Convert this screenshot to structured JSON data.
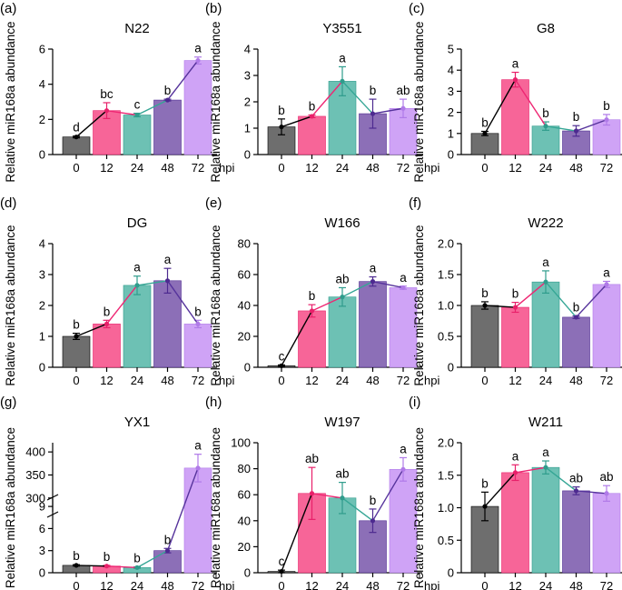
{
  "figure": {
    "x_unit_label": "hpi"
  },
  "colors": {
    "bars": [
      "#6e6e6e",
      "#f76598",
      "#6dc1b4",
      "#8c6fb7",
      "#cfa3f6"
    ],
    "points": [
      "#000000",
      "#e8206a",
      "#2f9c8c",
      "#4d2a90",
      "#b07ae8"
    ],
    "segments": [
      "#000000",
      "#ee2673",
      "#35a695",
      "#56339c"
    ],
    "error": [
      "#000000",
      "#e8206a",
      "#2f9c8c",
      "#4d2a90",
      "#b07ae8"
    ]
  },
  "chart_data": [
    {
      "panel": "(a)",
      "type": "bar",
      "title": "N22",
      "categories": [
        "0",
        "12",
        "24",
        "48",
        "72"
      ],
      "values": [
        1,
        2.5,
        2.25,
        3.1,
        5.35
      ],
      "errors": [
        0.05,
        0.45,
        0.1,
        0.05,
        0.2
      ],
      "letters": [
        "d",
        "bc",
        "c",
        "b",
        "a"
      ],
      "ylabel": "Relative miR168a abundance",
      "xlabel": "hpi",
      "ylim": [
        0,
        6
      ],
      "yticks": [
        0,
        2,
        4,
        6
      ],
      "ytick_labels": [
        "0",
        "2",
        "4",
        "6"
      ]
    },
    {
      "panel": "(b)",
      "type": "bar",
      "title": "Y3551",
      "categories": [
        "0",
        "12",
        "24",
        "48",
        "72"
      ],
      "values": [
        1.05,
        1.45,
        2.78,
        1.55,
        1.75
      ],
      "errors": [
        0.3,
        0.05,
        0.55,
        0.55,
        0.35
      ],
      "letters": [
        "b",
        "b",
        "a",
        "b",
        "ab"
      ],
      "ylabel": "Relative miR168a abundance",
      "xlabel": "hpi",
      "ylim": [
        0,
        4
      ],
      "yticks": [
        0,
        1,
        2,
        3,
        4
      ],
      "ytick_labels": [
        "0",
        "1",
        "2",
        "3",
        "4"
      ]
    },
    {
      "panel": "(c)",
      "type": "bar",
      "title": "G8",
      "categories": [
        "0",
        "12",
        "24",
        "48",
        "72"
      ],
      "values": [
        1.0,
        3.55,
        1.35,
        1.12,
        1.65
      ],
      "errors": [
        0.1,
        0.35,
        0.2,
        0.25,
        0.25
      ],
      "letters": [
        "b",
        "a",
        "b",
        "b",
        "b"
      ],
      "ylabel": "Relative miR168a abundance",
      "xlabel": "hpi",
      "ylim": [
        0,
        5
      ],
      "yticks": [
        0,
        1,
        2,
        3,
        4,
        5
      ],
      "ytick_labels": [
        "0",
        "1",
        "2",
        "3",
        "4",
        "5"
      ]
    },
    {
      "panel": "(d)",
      "type": "bar",
      "title": "DG",
      "categories": [
        "0",
        "12",
        "24",
        "48",
        "72"
      ],
      "values": [
        1.0,
        1.4,
        2.65,
        2.8,
        1.4
      ],
      "errors": [
        0.1,
        0.12,
        0.3,
        0.4,
        0.12
      ],
      "letters": [
        "b",
        "b",
        "a",
        "a",
        "b"
      ],
      "ylabel": "Relative miR168a abundance",
      "xlabel": "hpi",
      "ylim": [
        0,
        4
      ],
      "yticks": [
        0,
        1,
        2,
        3,
        4
      ],
      "ytick_labels": [
        "0",
        "1",
        "2",
        "3",
        "4"
      ]
    },
    {
      "panel": "(e)",
      "type": "bar",
      "title": "W166",
      "categories": [
        "0",
        "12",
        "24",
        "48",
        "72"
      ],
      "values": [
        1,
        36.5,
        45.5,
        55.5,
        51.5
      ],
      "errors": [
        0.5,
        4,
        6,
        3,
        1
      ],
      "letters": [
        "c",
        "b",
        "ab",
        "a",
        "a"
      ],
      "ylabel": "Relative miR168a abundance",
      "xlabel": "hpi",
      "ylim": [
        0,
        80
      ],
      "yticks": [
        0,
        20,
        40,
        60,
        80
      ],
      "ytick_labels": [
        "0",
        "20",
        "40",
        "60",
        "80"
      ]
    },
    {
      "panel": "(f)",
      "type": "bar",
      "title": "W222",
      "categories": [
        "0",
        "12",
        "24",
        "48",
        "72"
      ],
      "values": [
        1.0,
        0.97,
        1.38,
        0.81,
        1.34
      ],
      "errors": [
        0.06,
        0.08,
        0.18,
        0.02,
        0.05
      ],
      "letters": [
        "b",
        "b",
        "a",
        "b",
        "a"
      ],
      "ylabel": "Relative miR168a abundance",
      "xlabel": "hpi",
      "ylim": [
        0,
        2.0
      ],
      "yticks": [
        0,
        0.5,
        1.0,
        1.5,
        2.0
      ],
      "ytick_labels": [
        "0",
        "0.5",
        "1.0",
        "1.5",
        "2.0"
      ]
    },
    {
      "panel": "(g)",
      "type": "bar",
      "title": "YX1",
      "categories": [
        "0",
        "12",
        "24",
        "48",
        "72"
      ],
      "values": [
        1.0,
        0.9,
        0.7,
        3.0,
        365
      ],
      "errors": [
        0.1,
        0.1,
        0.1,
        0.3,
        30
      ],
      "letters": [
        "b",
        "b",
        "b",
        "b",
        "a"
      ],
      "ylabel": "Relative miR168a abundance",
      "xlabel": "hpi",
      "ylim": [
        0,
        400
      ],
      "broken_axis": {
        "lower": [
          0,
          10
        ],
        "upper": [
          270,
          420
        ]
      },
      "yticks": [
        0,
        3,
        6,
        9,
        300,
        350,
        400
      ],
      "ytick_labels": [
        "0",
        "3",
        "6",
        "9",
        "300",
        "350",
        "400"
      ]
    },
    {
      "panel": "(h)",
      "type": "bar",
      "title": "W197",
      "categories": [
        "0",
        "12",
        "24",
        "48",
        "72"
      ],
      "values": [
        1,
        61,
        57.5,
        40,
        79.5
      ],
      "errors": [
        1,
        20,
        12,
        9,
        9
      ],
      "letters": [
        "c",
        "ab",
        "ab",
        "b",
        "a"
      ],
      "ylabel": "Relative miR168a abundance",
      "xlabel": "hpi",
      "ylim": [
        0,
        100
      ],
      "yticks": [
        0,
        20,
        40,
        60,
        80,
        100
      ],
      "ytick_labels": [
        "0",
        "20",
        "40",
        "60",
        "80",
        "100"
      ]
    },
    {
      "panel": "(i)",
      "type": "bar",
      "title": "W211",
      "categories": [
        "0",
        "12",
        "24",
        "48",
        "72"
      ],
      "values": [
        1.02,
        1.54,
        1.62,
        1.26,
        1.22
      ],
      "errors": [
        0.22,
        0.12,
        0.1,
        0.06,
        0.12
      ],
      "letters": [
        "b",
        "a",
        "a",
        "ab",
        "ab"
      ],
      "ylabel": "Relative miR168a abundance",
      "xlabel": "hpi",
      "ylim": [
        0,
        2.0
      ],
      "yticks": [
        0,
        0.5,
        1.0,
        1.5,
        2.0
      ],
      "ytick_labels": [
        "0",
        "0.5",
        "1.0",
        "1.5",
        "2.0"
      ]
    }
  ]
}
